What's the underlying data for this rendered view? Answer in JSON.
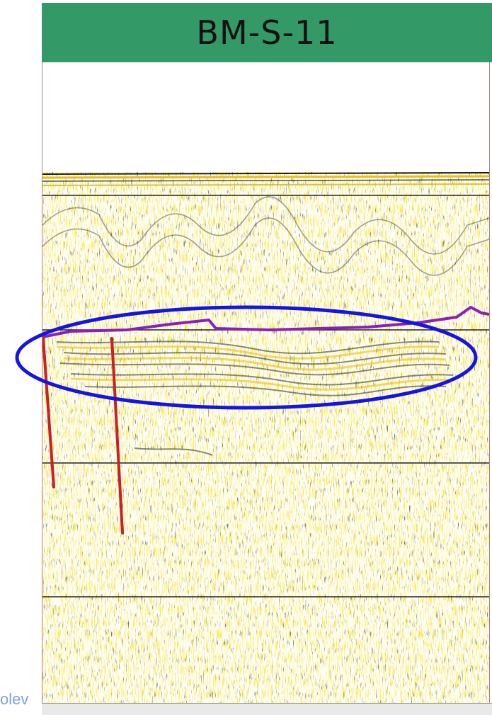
{
  "title": "BM-S-11",
  "corner_text": "olev",
  "colors": {
    "title_background": "#339966",
    "horizon_line": "#8a1fbf",
    "fault_lines": "#cc1f1f",
    "highlight_ellipse": "#1414e6",
    "seismic_yellow": "#f2d11f",
    "seismic_black": "#1a1a1a"
  }
}
